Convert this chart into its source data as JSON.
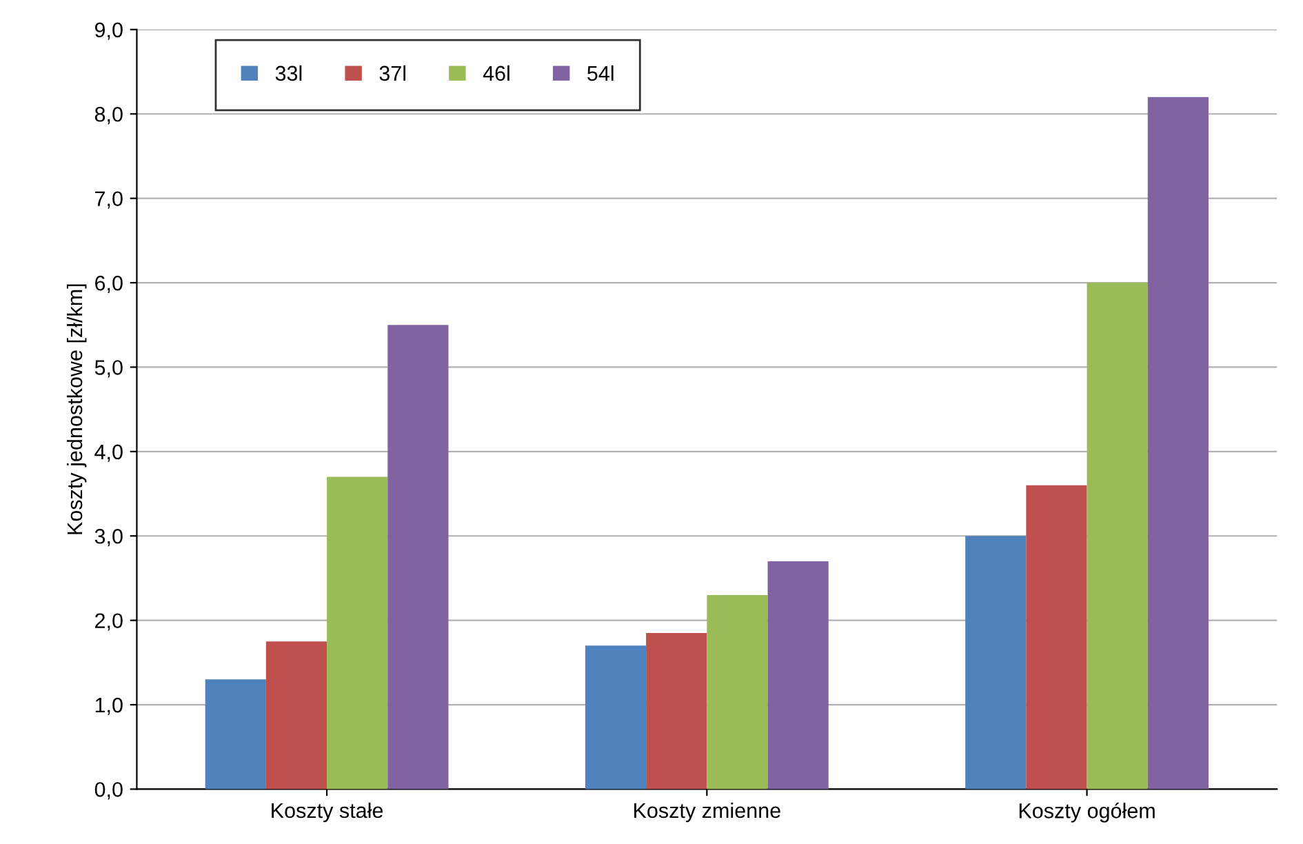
{
  "chart_data": {
    "type": "bar",
    "ylabel": "Koszty jednostkowe [zł/km]",
    "categories": [
      "Koszty stałe",
      "Koszty zmienne",
      "Koszty ogółem"
    ],
    "series": [
      {
        "name": "33l",
        "color": "#4f81bd",
        "values": [
          1.3,
          1.7,
          3.0
        ]
      },
      {
        "name": "37l",
        "color": "#c0504d",
        "values": [
          1.75,
          1.85,
          3.6
        ]
      },
      {
        "name": "46l",
        "color": "#9bbb59",
        "values": [
          3.7,
          2.3,
          6.0
        ]
      },
      {
        "name": "54l",
        "color": "#8064a2",
        "values": [
          5.5,
          2.7,
          8.2
        ]
      }
    ],
    "ylim": [
      0,
      9
    ],
    "yticks": [
      {
        "value": 0,
        "label": "0,0"
      },
      {
        "value": 1,
        "label": "1,0"
      },
      {
        "value": 2,
        "label": "2,0"
      },
      {
        "value": 3,
        "label": "3,0"
      },
      {
        "value": 4,
        "label": "4,0"
      },
      {
        "value": 5,
        "label": "5,0"
      },
      {
        "value": 6,
        "label": "6,0"
      },
      {
        "value": 7,
        "label": "7,0"
      },
      {
        "value": 8,
        "label": "8,0"
      },
      {
        "value": 9,
        "label": "9,0"
      }
    ],
    "grid": "y",
    "legend": "top left"
  }
}
